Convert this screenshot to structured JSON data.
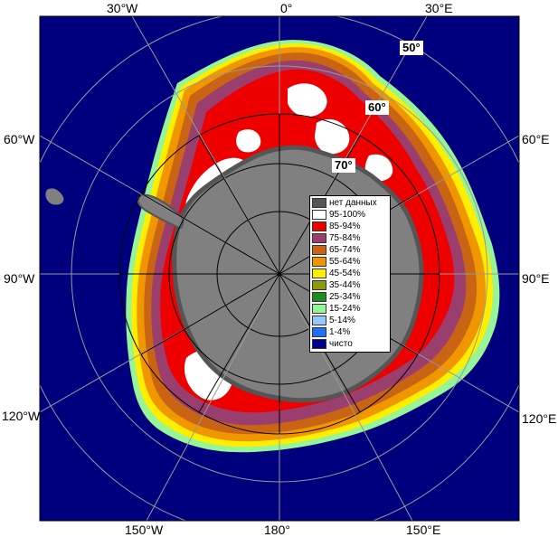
{
  "map": {
    "longitude_labels": {
      "top_30w": "30°W",
      "top_0": "0°",
      "top_30e": "30°E",
      "left_60w": "60°W",
      "left_90w": "90°W",
      "left_120w": "120°W",
      "right_60e": "60°E",
      "right_90e": "90°E",
      "right_120e": "120°E",
      "bottom_150w": "150°W",
      "bottom_180": "180°",
      "bottom_150e": "150°E"
    },
    "latitude_labels": {
      "lat_50": "50°",
      "lat_60": "60°",
      "lat_70": "70°"
    }
  },
  "legend": {
    "items": [
      {
        "label": "нет данных",
        "color": "#555555"
      },
      {
        "label": "95-100%",
        "color": "#ffffff"
      },
      {
        "label": "85-94%",
        "color": "#ee0000"
      },
      {
        "label": "75-84%",
        "color": "#9a3e6e"
      },
      {
        "label": "65-74%",
        "color": "#c86414"
      },
      {
        "label": "55-64%",
        "color": "#f09600"
      },
      {
        "label": "45-54%",
        "color": "#ffee00"
      },
      {
        "label": "35-44%",
        "color": "#8c9a10"
      },
      {
        "label": "25-34%",
        "color": "#1e8c1e"
      },
      {
        "label": "15-24%",
        "color": "#96f596"
      },
      {
        "label": "5-14%",
        "color": "#96c8ff"
      },
      {
        "label": "1-4%",
        "color": "#1e6eff"
      },
      {
        "label": "чисто",
        "color": "#00008c"
      }
    ]
  },
  "colors": {
    "ocean": "#00007f",
    "land": "#808080",
    "no_data": "#555555",
    "graticule": "#999999",
    "meridian": "#000000"
  }
}
